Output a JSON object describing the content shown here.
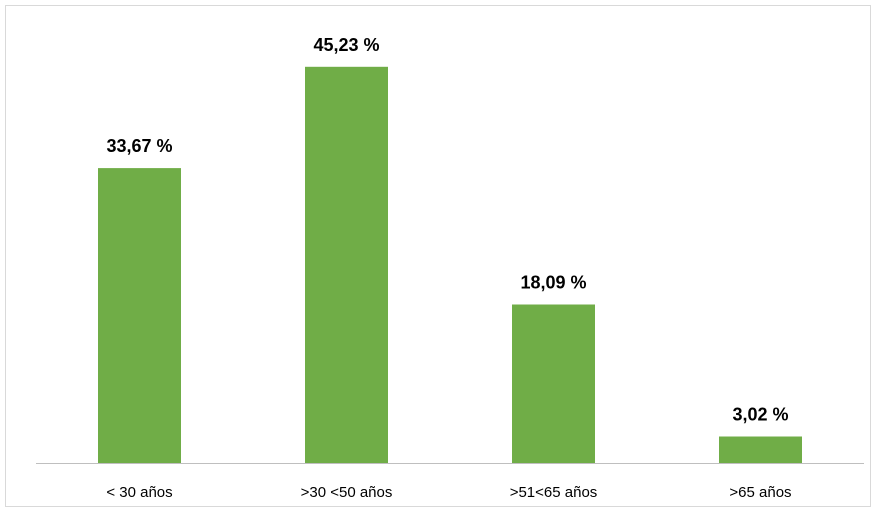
{
  "chart_data": {
    "type": "bar",
    "categories": [
      "< 30 años",
      ">30 <50 años",
      ">51<65 años",
      ">65 años"
    ],
    "values": [
      33.67,
      45.23,
      18.09,
      3.02
    ],
    "data_labels": [
      "33,67 %",
      "45,23 %",
      "18,09 %",
      "3,02 %"
    ],
    "title": "",
    "xlabel": "",
    "ylabel": "",
    "ylim": [
      0,
      52
    ],
    "grid": false,
    "legend": "none",
    "bar_color": "#70ad47",
    "axis_color": "#bfbfbf"
  }
}
